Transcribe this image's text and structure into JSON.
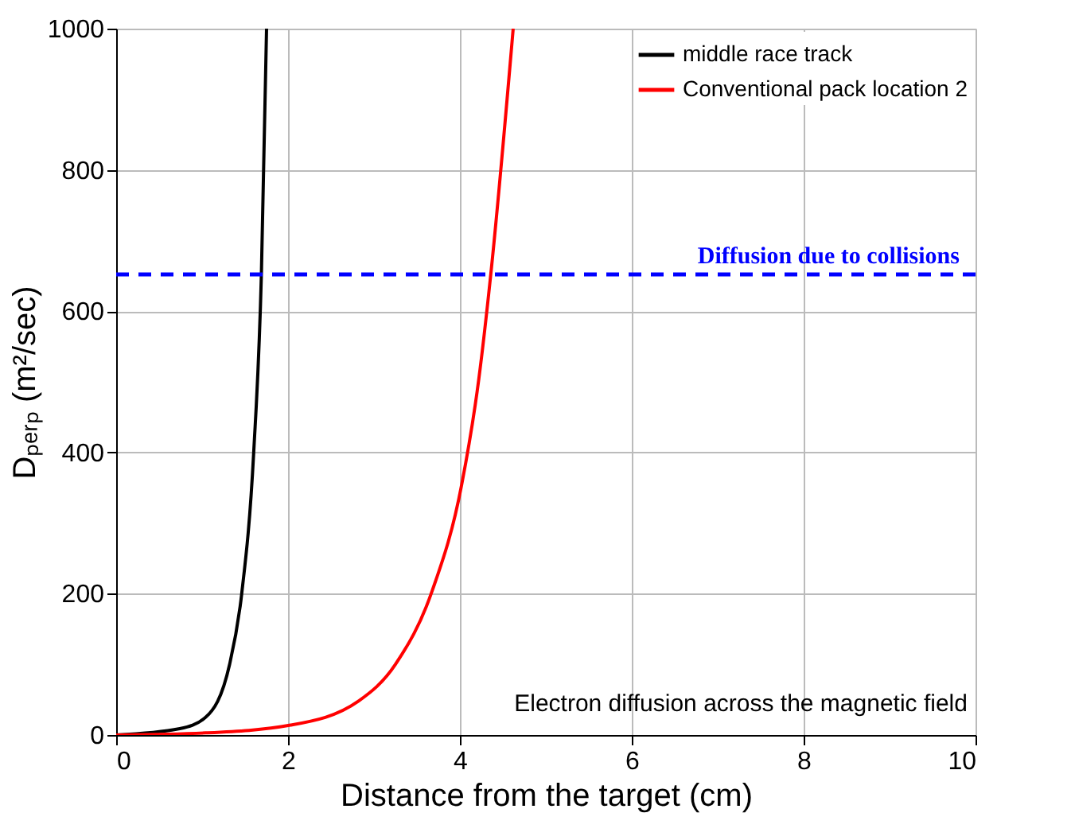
{
  "chart_data": {
    "type": "line",
    "xlabel": "Distance from the target (cm)",
    "ylabel": "Dₚₑᵣₚ (m²/sec)",
    "xlim": [
      0,
      10
    ],
    "ylim": [
      0,
      1000
    ],
    "xticks": [
      0,
      2,
      4,
      6,
      8,
      10
    ],
    "yticks": [
      0,
      200,
      400,
      600,
      800,
      1000
    ],
    "grid": true,
    "legend": "top right",
    "line_style": "solid",
    "marker": "none",
    "series": [
      {
        "name": "middle race track",
        "color": "#000000",
        "x": [
          0,
          0.74,
          1.04,
          1.32,
          1.46,
          1.6,
          1.69,
          1.75
        ],
        "values": [
          0,
          9,
          25,
          100,
          199,
          399,
          653,
          1000
        ]
      },
      {
        "name": "Conventional pack location 2",
        "color": "#ff0000",
        "x": [
          0,
          1.04,
          2.03,
          2.82,
          3.25,
          3.68,
          4.02,
          4.22,
          4.36,
          4.62
        ],
        "values": [
          0,
          3,
          14,
          48,
          100,
          205,
          354,
          504,
          653,
          1000
        ]
      }
    ],
    "ref_lines": [
      {
        "axis": "y",
        "value": 652,
        "label": "Diffusion due to collisions",
        "color": "#0000ff",
        "line_style": "dashed"
      }
    ],
    "annotations": [
      "Electron diffusion across the magnetic field"
    ]
  }
}
